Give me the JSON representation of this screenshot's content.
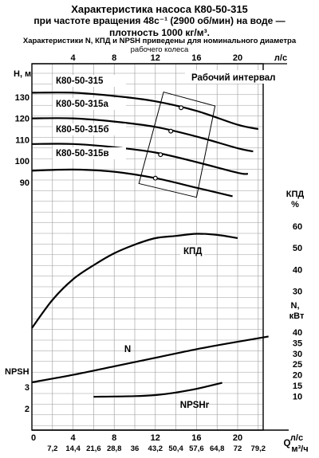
{
  "chart_data": {
    "type": "line",
    "title": "Характеристика насоса К80-50-315",
    "subtitle_1": "при частоте вращения 48с⁻¹ (2900 об/мин) на воде —",
    "subtitle_2": "плотность 1000 кг/м³.",
    "note": "Характеристики N, КПД и NPSH приведены для номинального диаметра",
    "note_2": "рабочего колеса",
    "top_axis": {
      "unit": "л/с",
      "ticks": [
        "4",
        "8",
        "12",
        "16",
        "20"
      ],
      "values": [
        4,
        8,
        12,
        16,
        20
      ]
    },
    "bottom_axis": {
      "unit_ls": "л/с",
      "unit_m3h": "м³/ч",
      "q_label": "Q",
      "ticks_ls": [
        "0",
        "4",
        "8",
        "12",
        "16",
        "20"
      ],
      "values_ls": [
        0,
        4,
        8,
        12,
        16,
        20
      ],
      "ticks_m3h": [
        "7,2",
        "14,4",
        "21,6",
        "28,8",
        "36",
        "43,2",
        "50,4",
        "57,6",
        "64,8",
        "72",
        "79,2"
      ],
      "values_m3h": [
        7.2,
        14.4,
        21.6,
        28.8,
        36,
        43.2,
        50.4,
        57.6,
        64.8,
        72,
        79.2
      ]
    },
    "head_axis": {
      "label": "H, м",
      "ticks": [
        "130",
        "120",
        "110",
        "100",
        "90"
      ],
      "values": [
        130,
        120,
        110,
        100,
        90
      ]
    },
    "eff_axis": {
      "label_1": "КПД",
      "label_2": "%",
      "ticks": [
        "60",
        "50",
        "40",
        "30"
      ],
      "values": [
        60,
        50,
        40,
        30
      ]
    },
    "power_axis": {
      "label_1": "N,",
      "label_2": "кВт",
      "ticks": [
        "40",
        "35",
        "30",
        "25",
        "20",
        "15",
        "10"
      ],
      "values": [
        40,
        35,
        30,
        25,
        20,
        15,
        10
      ]
    },
    "npsh_axis": {
      "label": "NPSH",
      "ticks": [
        "3",
        "2"
      ],
      "values": [
        3,
        2
      ]
    },
    "working_range_label": "Рабочий интервал",
    "working_range_q": [
      12,
      16
    ],
    "head_curves": [
      {
        "name": "К80-50-315",
        "points": [
          [
            0,
            132
          ],
          [
            4,
            132
          ],
          [
            8,
            130.5
          ],
          [
            12,
            128
          ],
          [
            16,
            123.5
          ],
          [
            20,
            117
          ],
          [
            22,
            115
          ]
        ],
        "operating_point": [
          14.5,
          125
        ]
      },
      {
        "name": "К80-50-315а",
        "points": [
          [
            0,
            120
          ],
          [
            4,
            120
          ],
          [
            8,
            118.5
          ],
          [
            12,
            116
          ],
          [
            16,
            111.5
          ],
          [
            20,
            106
          ],
          [
            21.5,
            104.5
          ]
        ],
        "operating_point": [
          13.5,
          114
        ]
      },
      {
        "name": "К80-50-315б",
        "points": [
          [
            0,
            108
          ],
          [
            4,
            108
          ],
          [
            8,
            106.5
          ],
          [
            12,
            104
          ],
          [
            16,
            99.5
          ],
          [
            20,
            94.5
          ],
          [
            21,
            94
          ]
        ],
        "operating_point": [
          12.5,
          103
        ]
      },
      {
        "name": "К80-50-315в",
        "points": [
          [
            0,
            95.5
          ],
          [
            4,
            96
          ],
          [
            8,
            95
          ],
          [
            12,
            92
          ],
          [
            16,
            87.5
          ],
          [
            19.5,
            83.5
          ]
        ],
        "operating_point": [
          12,
          92
        ]
      }
    ],
    "efficiency": {
      "name": "КПД",
      "points": [
        [
          0,
          13
        ],
        [
          2,
          26
        ],
        [
          4,
          35.5
        ],
        [
          6,
          42
        ],
        [
          8,
          47.5
        ],
        [
          10,
          51.5
        ],
        [
          12,
          54.5
        ],
        [
          14,
          55.5
        ],
        [
          16,
          56.5
        ],
        [
          18,
          56
        ],
        [
          20,
          54.5
        ]
      ]
    },
    "power": {
      "name": "N",
      "points": [
        [
          0,
          16.5
        ],
        [
          4,
          20
        ],
        [
          8,
          24
        ],
        [
          12,
          28
        ],
        [
          16,
          32
        ],
        [
          20,
          35.5
        ],
        [
          23,
          38
        ]
      ]
    },
    "npsh": {
      "name": "NPSHr",
      "points": [
        [
          6,
          2.55
        ],
        [
          10,
          2.58
        ],
        [
          12,
          2.63
        ],
        [
          14,
          2.75
        ],
        [
          16,
          2.92
        ],
        [
          18.5,
          3.2
        ]
      ]
    },
    "grid": true
  }
}
